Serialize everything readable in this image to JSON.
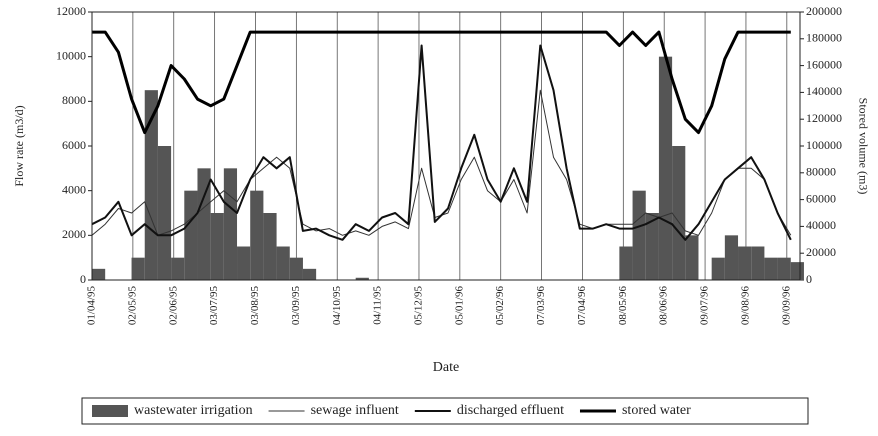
{
  "chart_data": {
    "type": "combo",
    "xlabel": "Date",
    "ylabel": "Flow rate (m3/d)",
    "y2label": "Stored volume (m3)",
    "x": [
      "01/04/95",
      "11/04/95",
      "21/04/95",
      "01/05/95",
      "11/05/95",
      "21/05/95",
      "31/05/95",
      "10/06/95",
      "20/06/95",
      "30/06/95",
      "10/07/95",
      "20/07/95",
      "30/07/95",
      "09/08/95",
      "19/08/95",
      "29/08/95",
      "08/09/95",
      "18/09/95",
      "28/09/95",
      "08/10/95",
      "18/10/95",
      "28/10/95",
      "07/11/95",
      "17/11/95",
      "27/11/95",
      "07/12/95",
      "17/12/95",
      "27/12/95",
      "06/01/96",
      "16/01/96",
      "26/01/96",
      "05/02/96",
      "15/02/96",
      "25/02/96",
      "06/03/96",
      "16/03/96",
      "26/03/96",
      "05/04/96",
      "15/04/96",
      "25/04/96",
      "05/05/96",
      "15/05/96",
      "25/05/96",
      "04/06/96",
      "14/06/96",
      "24/06/96",
      "04/07/96",
      "14/07/96",
      "24/07/96",
      "03/08/96",
      "13/08/96",
      "23/08/96",
      "02/09/96",
      "12/09/96"
    ],
    "xlim": [
      "01/04/95",
      "19/09/96"
    ],
    "xticks": [
      "01/04/95",
      "02/05/95",
      "02/06/95",
      "03/07/95",
      "03/08/95",
      "03/09/95",
      "04/10/95",
      "04/11/95",
      "05/12/95",
      "05/01/96",
      "05/02/96",
      "07/03/96",
      "07/04/96",
      "08/05/96",
      "08/06/96",
      "09/07/96",
      "09/08/96",
      "09/09/96"
    ],
    "ylim": [
      0,
      12000
    ],
    "yticks": [
      0,
      2000,
      4000,
      6000,
      8000,
      10000,
      12000
    ],
    "y2lim": [
      0,
      200000
    ],
    "y2ticks": [
      0,
      20000,
      40000,
      60000,
      80000,
      100000,
      120000,
      140000,
      160000,
      180000,
      200000
    ],
    "grid": true,
    "legend": "bottom",
    "series": [
      {
        "name": "wastewater irrigation",
        "type": "bar",
        "color": "#555555",
        "values": [
          500,
          0,
          0,
          1000,
          8500,
          6000,
          1000,
          4000,
          5000,
          3000,
          5000,
          1500,
          4000,
          3000,
          1500,
          1000,
          500,
          0,
          0,
          0,
          100,
          0,
          0,
          0,
          0,
          0,
          0,
          0,
          0,
          0,
          0,
          0,
          0,
          0,
          0,
          0,
          0,
          0,
          0,
          0,
          1500,
          4000,
          3000,
          10000,
          6000,
          2000,
          0,
          1000,
          2000,
          1500,
          1500,
          1000,
          1000,
          800
        ]
      },
      {
        "name": "sewage influent",
        "type": "line",
        "color": "#333333",
        "line_width": 1,
        "values": [
          2000,
          2500,
          3200,
          3000,
          3500,
          2000,
          2200,
          2500,
          3000,
          3500,
          4000,
          3500,
          4500,
          5000,
          5500,
          5000,
          2500,
          2200,
          2300,
          2000,
          2200,
          2000,
          2400,
          2600,
          2300,
          5000,
          2800,
          3000,
          4500,
          5500,
          4000,
          3500,
          4500,
          3000,
          8500,
          5500,
          4500,
          2500,
          2300,
          2500,
          2500,
          2500,
          3000,
          2800,
          3000,
          2200,
          2000,
          3000,
          4500,
          5000,
          5000,
          4500,
          3000,
          2000
        ]
      },
      {
        "name": "discharged effluent",
        "type": "line",
        "color": "#111111",
        "line_width": 2,
        "values": [
          2500,
          2800,
          3500,
          2000,
          2500,
          2000,
          2000,
          2300,
          3000,
          4500,
          3500,
          3000,
          4500,
          5500,
          5000,
          5500,
          2200,
          2300,
          2000,
          1800,
          2500,
          2200,
          2800,
          3000,
          2500,
          10500,
          2600,
          3200,
          5000,
          6500,
          4500,
          3500,
          5000,
          3500,
          10500,
          8500,
          5000,
          2300,
          2300,
          2500,
          2300,
          2300,
          2500,
          2800,
          2500,
          1800,
          2500,
          3500,
          4500,
          5000,
          5500,
          4500,
          3000,
          1800
        ]
      },
      {
        "name": "stored water",
        "type": "line",
        "axis": "y2",
        "color": "#000000",
        "line_width": 3,
        "values": [
          185000,
          185000,
          170000,
          135000,
          110000,
          130000,
          160000,
          150000,
          135000,
          130000,
          135000,
          160000,
          185000,
          185000,
          185000,
          185000,
          185000,
          185000,
          185000,
          185000,
          185000,
          185000,
          185000,
          185000,
          185000,
          185000,
          185000,
          185000,
          185000,
          185000,
          185000,
          185000,
          185000,
          185000,
          185000,
          185000,
          185000,
          185000,
          185000,
          185000,
          175000,
          185000,
          175000,
          185000,
          150000,
          120000,
          110000,
          130000,
          165000,
          185000,
          185000,
          185000,
          185000,
          185000
        ]
      }
    ]
  }
}
